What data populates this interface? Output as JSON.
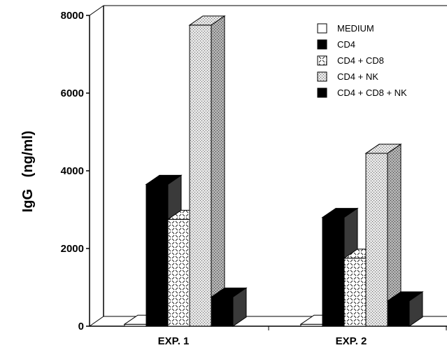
{
  "chart_data": {
    "type": "bar",
    "style": "3d",
    "ylabel": "IgG   (ng/ml)",
    "xlabel": "",
    "title": "",
    "ylim": [
      0,
      8000
    ],
    "yticks": [
      "0",
      "2000",
      "4000",
      "6000",
      "8000"
    ],
    "categories": [
      "EXP. 1",
      "EXP. 2"
    ],
    "legend_position": "top-right",
    "series": [
      {
        "name": "MEDIUM",
        "values": [
          50,
          50
        ],
        "fill": "white"
      },
      {
        "name": "CD4",
        "values": [
          3650,
          2800
        ],
        "fill": "black"
      },
      {
        "name": "CD4 + CD8",
        "values": [
          2750,
          1750
        ],
        "fill": "cross-hatch"
      },
      {
        "name": "CD4 + NK",
        "values": [
          7750,
          4450
        ],
        "fill": "stipple"
      },
      {
        "name": "CD4 + CD8 + NK",
        "values": [
          750,
          650
        ],
        "fill": "black"
      }
    ]
  }
}
